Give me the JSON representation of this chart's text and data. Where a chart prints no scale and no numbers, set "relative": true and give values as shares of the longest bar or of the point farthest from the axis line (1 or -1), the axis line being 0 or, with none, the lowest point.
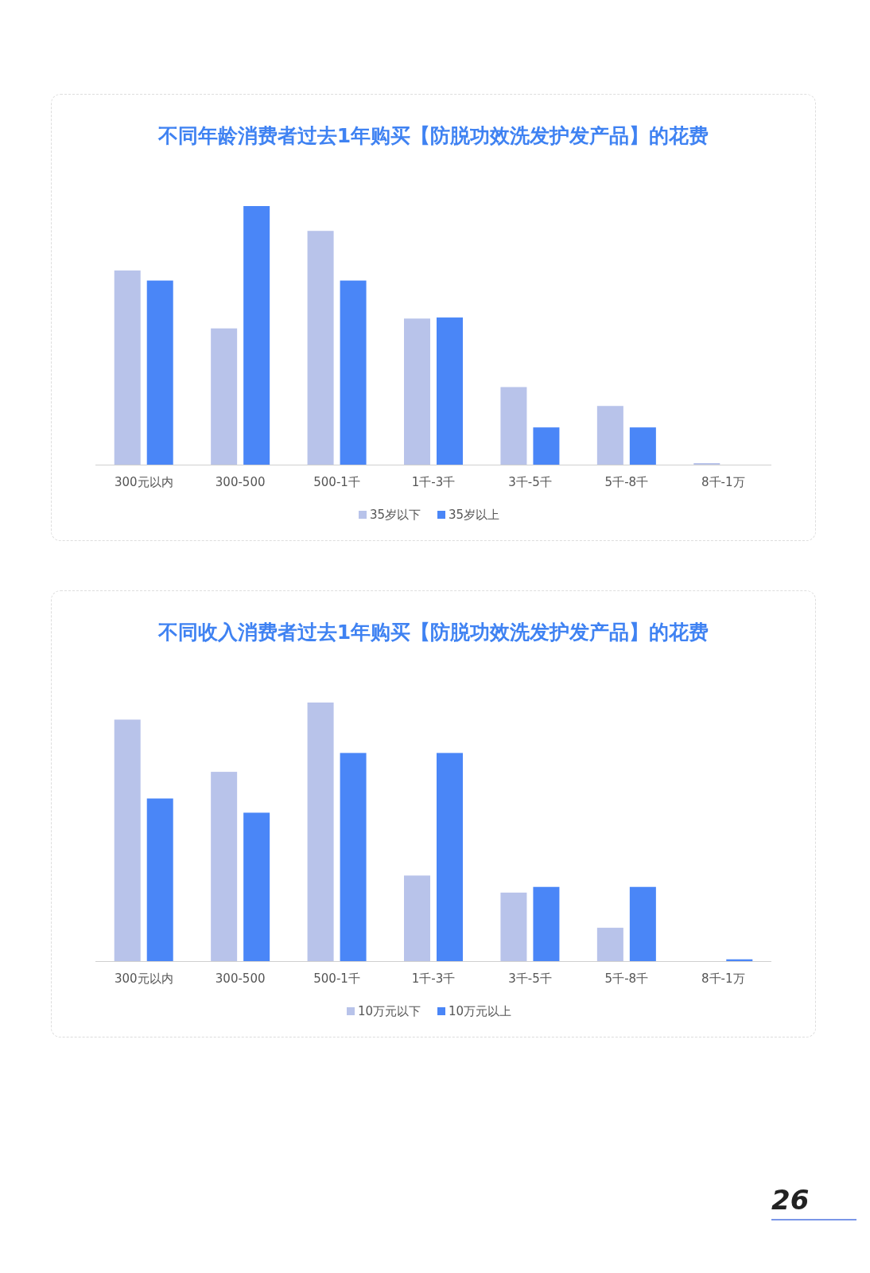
{
  "chart_data": [
    {
      "type": "bar",
      "title": "不同年龄消费者过去1年购买【防脱功效洗发护发产品】的花费",
      "relative": true,
      "legend": "bottom",
      "categories": [
        "300元以内",
        "300-500",
        "500-1千",
        "1千-3千",
        "3千-5千",
        "5千-8千",
        "8千-1万"
      ],
      "series": [
        {
          "name": "35岁以下",
          "color": "#b8c3ea",
          "values": [
            0.751,
            0.527,
            0.904,
            0.565,
            0.3,
            0.227,
            0.006
          ]
        },
        {
          "name": "35岁以上",
          "color": "#4a86f7",
          "values": [
            0.712,
            1,
            0.712,
            0.569,
            0.144,
            0.144,
            0
          ]
        }
      ]
    },
    {
      "type": "bar",
      "title": "不同收入消费者过去1年购买【防脱功效洗发护发产品】的花费",
      "relative": true,
      "legend": "bottom",
      "categories": [
        "300元以内",
        "300-500",
        "500-1千",
        "1千-3千",
        "3千-5千",
        "5千-8千",
        "8千-1万"
      ],
      "series": [
        {
          "name": "10万元以下",
          "color": "#b8c3ea",
          "values": [
            0.934,
            0.732,
            1,
            0.331,
            0.265,
            0.129,
            0
          ]
        },
        {
          "name": "10万元以上",
          "color": "#4a86f7",
          "values": [
            0.629,
            0.574,
            0.805,
            0.805,
            0.287,
            0.287,
            0.007
          ]
        }
      ],
      "annotations": [
        "26"
      ]
    }
  ]
}
